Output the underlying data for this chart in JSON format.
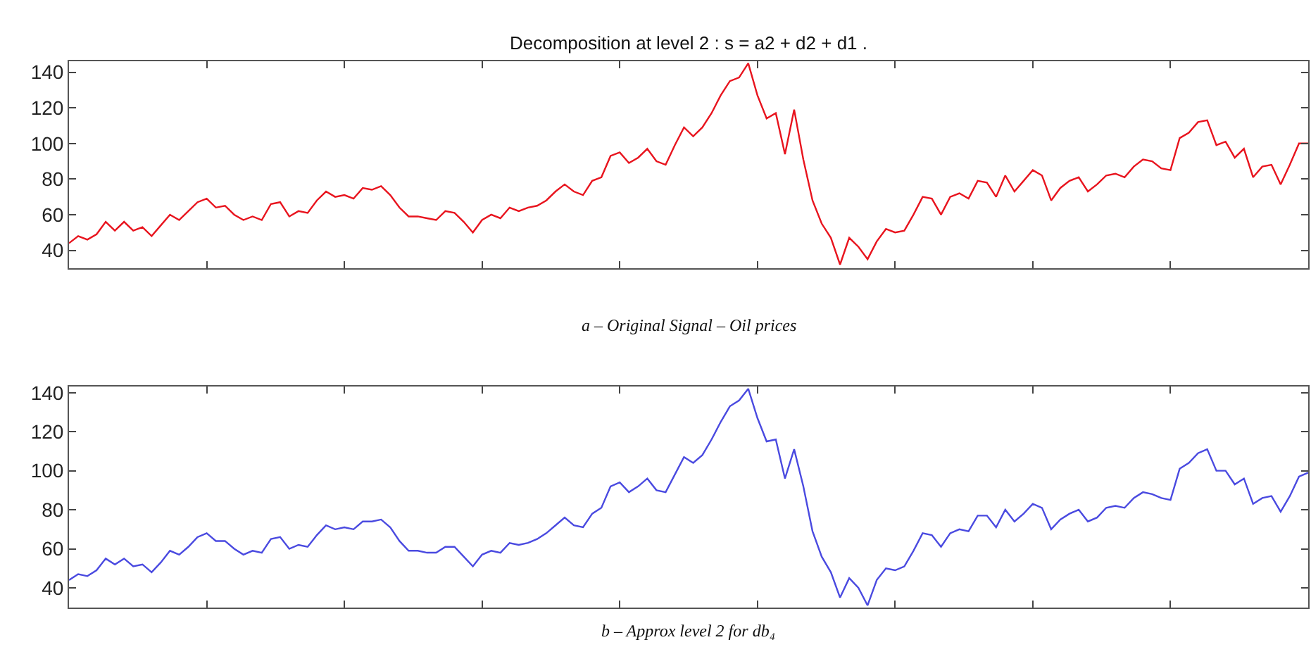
{
  "chart_data": [
    {
      "type": "line",
      "title": "Decomposition at level 2 : s = a2 + d2 + d1 .",
      "annotations": [
        "a – Original Signal – Oil prices"
      ],
      "ylim": [
        30,
        146
      ],
      "yticks": [
        40,
        60,
        80,
        100,
        120,
        140
      ],
      "tick_labels": "y",
      "categories": [
        null,
        null,
        null,
        null,
        null,
        null,
        null,
        null,
        null,
        null,
        null,
        null,
        null,
        null,
        null,
        null,
        null,
        null,
        null,
        null,
        null,
        null,
        null,
        null,
        null,
        null,
        null,
        null,
        null,
        null,
        null,
        null,
        null,
        null,
        null,
        null,
        null,
        null,
        null,
        null,
        null,
        null,
        null,
        null,
        null,
        null,
        null,
        null,
        null,
        null,
        null,
        null,
        null,
        null,
        null,
        null,
        null,
        null,
        null,
        null,
        null,
        null,
        null,
        null,
        null,
        null,
        null,
        null,
        null,
        null,
        null,
        null,
        null,
        null,
        null,
        null,
        null,
        null,
        null,
        null,
        null,
        null,
        null,
        null,
        null,
        null,
        null,
        null,
        null,
        null,
        null,
        null,
        null,
        null,
        null,
        null,
        null,
        null,
        null,
        null,
        null,
        null,
        null,
        null,
        null,
        null,
        null,
        null,
        null,
        null,
        null,
        null,
        null,
        null,
        null,
        null,
        null,
        null,
        null,
        null,
        null,
        null,
        null,
        null,
        null,
        null,
        null,
        null,
        null,
        null,
        null,
        null,
        null,
        null,
        null,
        null
      ],
      "series": [
        {
          "color": "#e8141e",
          "values": [
            44,
            48,
            46,
            49,
            56,
            51,
            56,
            51,
            53,
            48,
            54,
            60,
            57,
            62,
            67,
            69,
            64,
            65,
            60,
            57,
            59,
            57,
            66,
            67,
            59,
            62,
            61,
            68,
            73,
            70,
            71,
            69,
            75,
            74,
            76,
            71,
            64,
            59,
            59,
            58,
            57,
            62,
            61,
            56,
            50,
            57,
            60,
            58,
            64,
            62,
            64,
            65,
            68,
            73,
            77,
            73,
            71,
            79,
            81,
            93,
            95,
            89,
            92,
            97,
            90,
            88,
            99,
            109,
            104,
            109,
            117,
            127,
            135,
            137,
            145,
            127,
            114,
            117,
            94,
            119,
            91,
            68,
            55,
            47,
            32,
            47,
            42,
            35,
            45,
            52,
            50,
            51,
            60,
            70,
            69,
            60,
            70,
            72,
            69,
            79,
            78,
            70,
            82,
            73,
            79,
            85,
            82,
            68,
            75,
            79,
            81,
            73,
            77,
            82,
            83,
            81,
            87,
            91,
            90,
            86,
            85,
            103,
            106,
            112,
            113,
            99,
            101,
            92,
            97,
            81,
            87,
            88,
            77,
            88,
            100,
            100
          ]
        }
      ]
    },
    {
      "type": "line",
      "annotations": [
        "b – Approx level 2 for db₄"
      ],
      "ylim": [
        30,
        143
      ],
      "yticks": [
        40,
        60,
        80,
        100,
        120,
        140
      ],
      "tick_labels": "y",
      "categories": [
        null,
        null,
        null,
        null,
        null,
        null,
        null,
        null,
        null,
        null,
        null,
        null,
        null,
        null,
        null,
        null,
        null,
        null,
        null,
        null,
        null,
        null,
        null,
        null,
        null,
        null,
        null,
        null,
        null,
        null,
        null,
        null,
        null,
        null,
        null,
        null,
        null,
        null,
        null,
        null,
        null,
        null,
        null,
        null,
        null,
        null,
        null,
        null,
        null,
        null,
        null,
        null,
        null,
        null,
        null,
        null,
        null,
        null,
        null,
        null,
        null,
        null,
        null,
        null,
        null,
        null,
        null,
        null,
        null,
        null,
        null,
        null,
        null,
        null,
        null,
        null,
        null,
        null,
        null,
        null,
        null,
        null,
        null,
        null,
        null,
        null,
        null,
        null,
        null,
        null,
        null,
        null,
        null,
        null,
        null,
        null,
        null,
        null,
        null,
        null,
        null,
        null,
        null,
        null,
        null,
        null,
        null,
        null,
        null,
        null,
        null,
        null,
        null,
        null,
        null,
        null,
        null,
        null,
        null,
        null,
        null,
        null,
        null,
        null,
        null,
        null,
        null,
        null,
        null,
        null,
        null,
        null,
        null,
        null,
        null,
        null
      ],
      "series": [
        {
          "color": "#4a4ae0",
          "values": [
            44,
            47,
            46,
            49,
            55,
            52,
            55,
            51,
            52,
            48,
            53,
            59,
            57,
            61,
            66,
            68,
            64,
            64,
            60,
            57,
            59,
            58,
            65,
            66,
            60,
            62,
            61,
            67,
            72,
            70,
            71,
            70,
            74,
            74,
            75,
            71,
            64,
            59,
            59,
            58,
            58,
            61,
            61,
            56,
            51,
            57,
            59,
            58,
            63,
            62,
            63,
            65,
            68,
            72,
            76,
            72,
            71,
            78,
            81,
            92,
            94,
            89,
            92,
            96,
            90,
            89,
            98,
            107,
            104,
            108,
            116,
            125,
            133,
            136,
            142,
            127,
            115,
            116,
            96,
            111,
            92,
            69,
            56,
            48,
            35,
            45,
            40,
            31,
            44,
            50,
            49,
            51,
            59,
            68,
            67,
            61,
            68,
            70,
            69,
            77,
            77,
            71,
            80,
            74,
            78,
            83,
            81,
            70,
            75,
            78,
            80,
            74,
            76,
            81,
            82,
            81,
            86,
            89,
            88,
            86,
            85,
            101,
            104,
            109,
            111,
            100,
            100,
            93,
            96,
            83,
            86,
            87,
            79,
            87,
            97,
            99
          ]
        }
      ]
    }
  ]
}
